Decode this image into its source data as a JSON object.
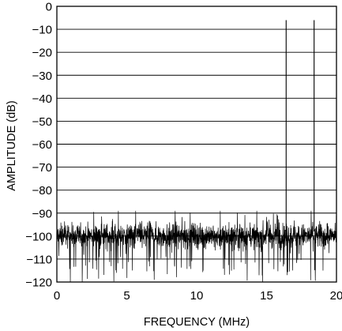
{
  "chart_data": {
    "type": "line",
    "title": "",
    "xlabel": "FREQUENCY (MHz)",
    "ylabel": "AMPLITUDE (dB)",
    "xlim": [
      0,
      20
    ],
    "ylim": [
      -120,
      0
    ],
    "x_ticks": [
      "0",
      "5",
      "10",
      "15",
      "20"
    ],
    "y_ticks": [
      "0",
      "−10",
      "−20",
      "−30",
      "−40",
      "−50",
      "−60",
      "−70",
      "−80",
      "−90",
      "−100",
      "−110",
      "−120"
    ],
    "grid": "horizontal",
    "series": [
      {
        "kind": "noise-floor",
        "x_range": [
          0,
          20
        ],
        "typical_level": -100,
        "upper_peaks": -89,
        "lower_extent": -120
      },
      {
        "kind": "tones",
        "x": [
          16.4,
          18.4
        ],
        "y": [
          -6,
          -6
        ]
      }
    ]
  }
}
